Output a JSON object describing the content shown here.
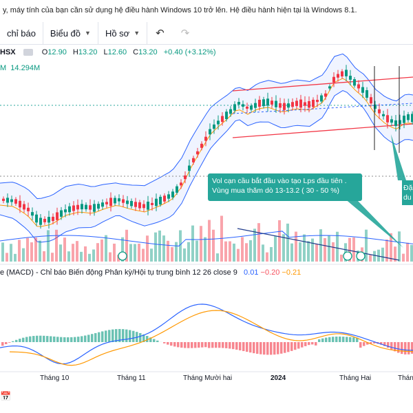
{
  "banner": {
    "text": "y, máy tính của bạn cần sử dụng hệ điều hành Windows 10 trở lên. Hệ điều hành hiện tại là Windows 8.1."
  },
  "toolbar": {
    "indicators_label": "chỉ báo",
    "chart_type_label": "Biểu đồ",
    "profile_label": "Hồ sơ"
  },
  "legend": {
    "symbol": "HSX",
    "open_label": "O",
    "open": "12.90",
    "high_label": "H",
    "high": "13.20",
    "low_label": "L",
    "low": "12.60",
    "close_label": "C",
    "close": "13.20",
    "change": "+0.40 (+3.12%)"
  },
  "volume": {
    "suffix": "M",
    "value": "14.294M"
  },
  "macd": {
    "label": "e (MACD) - Chỉ báo Biến động Phân kỳ/Hội tụ trung bình 12 26 close 9",
    "v1": "0.01",
    "v2": "−0.20",
    "v3": "−0.21"
  },
  "callout": {
    "text": "Vol cạn cầu bắt đầu vào tạo Lps đầu tiên . Vùng mua thăm dò 13-13.2 ( 30 - 50 %)"
  },
  "callout2": {
    "text": "Đặ du"
  },
  "axis": {
    "labels": [
      "Tháng 10",
      "Tháng 11",
      "Tháng Mười hai",
      "2024",
      "Tháng Hai",
      "Tháng"
    ]
  },
  "colors": {
    "up": "#089981",
    "down": "#f23645",
    "band": "#2962ff",
    "ma": "#ff9800",
    "callout": "#26a69a"
  }
}
